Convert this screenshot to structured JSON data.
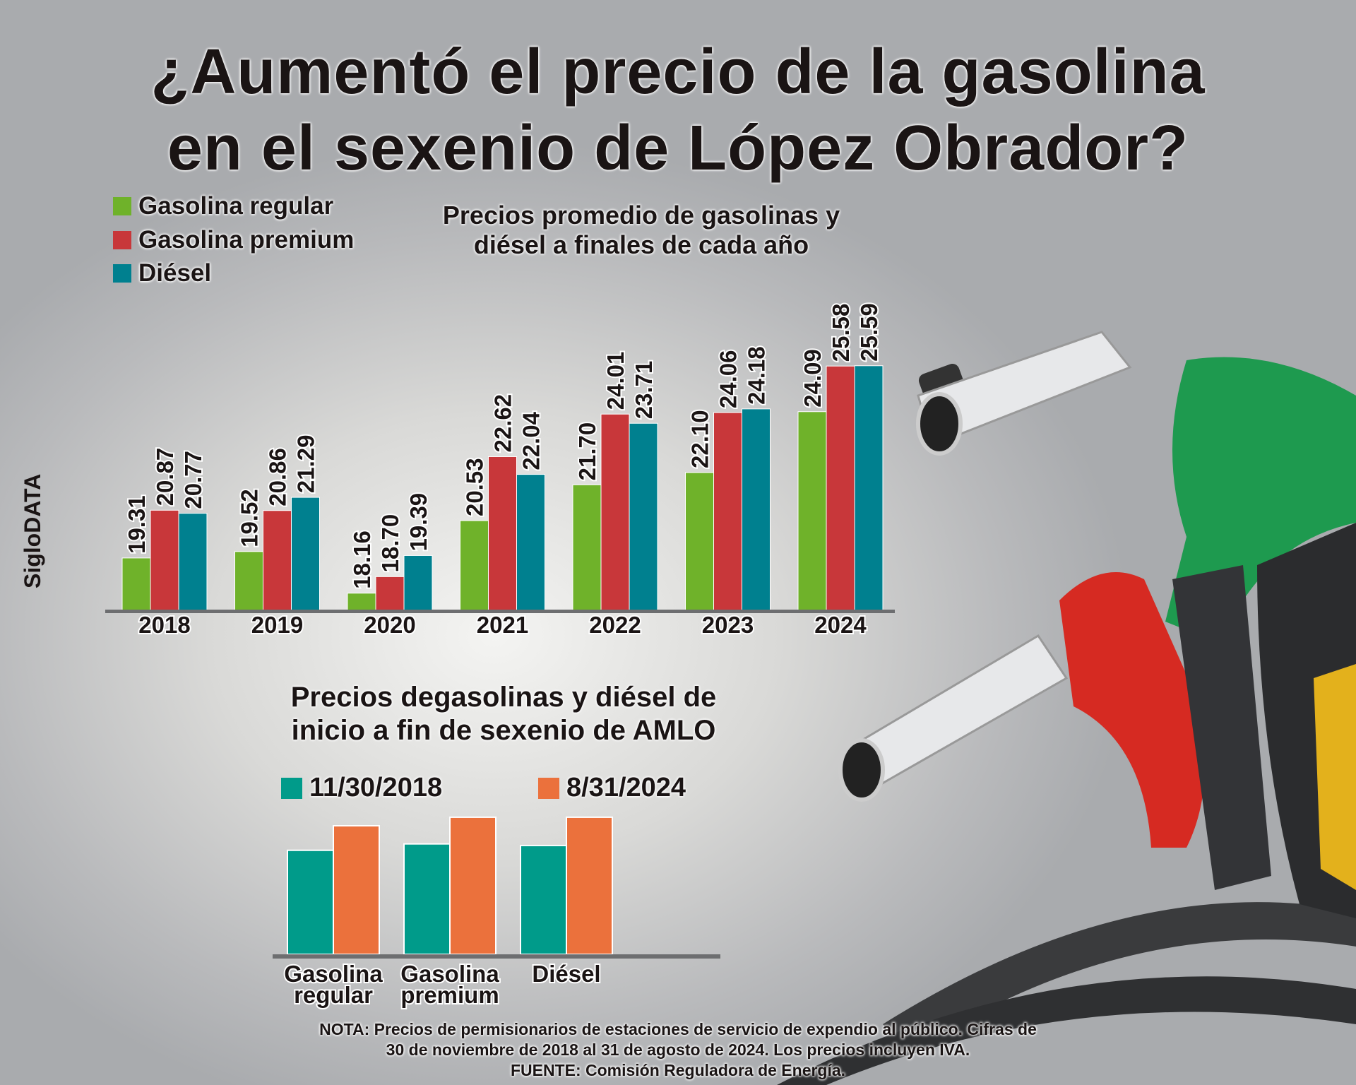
{
  "title_line1": "¿Aumentó el precio de la gasolina",
  "title_line2": "en el sexenio de López Obrador?",
  "brand": "SigloDATA",
  "colors": {
    "regular": "#6fb22a",
    "premium": "#c8373a",
    "diesel": "#00808f",
    "start": "#009b8a",
    "end": "#eb713c"
  },
  "chart_data": [
    {
      "type": "bar",
      "title_line1": "Precios promedio de gasolinas y",
      "title_line2": "diésel a finales de cada año",
      "categories": [
        "2018",
        "2019",
        "2020",
        "2021",
        "2022",
        "2023",
        "2024"
      ],
      "legend_position": "top-left",
      "grid": false,
      "ylim": [
        17.6,
        26
      ],
      "series": [
        {
          "name": "Gasolina regular",
          "color": "#6fb22a",
          "values": [
            19.31,
            19.52,
            18.16,
            20.53,
            21.7,
            22.1,
            24.09
          ],
          "labels": [
            "19.31",
            "19.52",
            "18.16",
            "20.53",
            "21.70",
            "22.10",
            "24.09"
          ]
        },
        {
          "name": "Gasolina premium",
          "color": "#c8373a",
          "values": [
            20.87,
            20.86,
            18.7,
            22.62,
            24.01,
            24.06,
            25.58
          ],
          "labels": [
            "20.87",
            "20.86",
            "18.70",
            "22.62",
            "24.01",
            "24.06",
            "25.58"
          ]
        },
        {
          "name": "Diésel",
          "color": "#00808f",
          "values": [
            20.77,
            21.29,
            19.39,
            22.04,
            23.71,
            24.18,
            25.59
          ],
          "labels": [
            "20.77",
            "21.29",
            "19.39",
            "22.04",
            "23.71",
            "24.18",
            "25.59"
          ]
        }
      ]
    },
    {
      "type": "bar",
      "title_line1": "Precios degasolinas y diésel de",
      "title_line2": "inicio a fin de sexenio de AMLO",
      "categories": [
        [
          "Gasolina",
          "regular"
        ],
        [
          "Gasolina",
          "premium"
        ],
        [
          "Diésel",
          ""
        ]
      ],
      "legend_position": "top",
      "grid": false,
      "ylim": [
        0,
        26
      ],
      "series": [
        {
          "name": "11/30/2018",
          "color": "#009b8a",
          "values": [
            19.5,
            20.7,
            20.4
          ]
        },
        {
          "name": "8/31/2024",
          "color": "#eb713c",
          "values": [
            24.1,
            25.7,
            25.7
          ]
        }
      ]
    }
  ],
  "note_line1": "NOTA: Precios de permisionarios de estaciones de servicio de expendio al público. Cifras de",
  "note_line2": "30 de noviembre de 2018 al 31 de agosto de 2024. Los precios incluyen IVA.",
  "source": "FUENTE: Comisión Reguladora de Energía."
}
